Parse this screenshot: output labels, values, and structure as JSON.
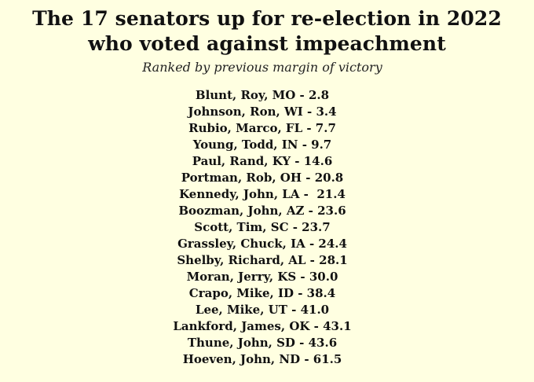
{
  "heading": {
    "title_line1": "The 17 senators up for re-election in 2022",
    "title_line2": "who voted against impeachment",
    "subtitle": "Ranked by previous margin of victory"
  },
  "senators": [
    "Blunt, Roy, MO - 2.8",
    "Johnson, Ron, WI - 3.4",
    "Rubio, Marco, FL - 7.7",
    "Young, Todd, IN - 9.7",
    "Paul, Rand, KY - 14.6",
    "Portman, Rob, OH - 20.8",
    "Kennedy, John, LA -  21.4",
    "Boozman, John, AZ - 23.6",
    "Scott, Tim, SC - 23.7",
    "Grassley, Chuck, IA - 24.4",
    "Shelby, Richard, AL - 28.1",
    "Moran, Jerry, KS - 30.0",
    "Crapo, Mike, ID - 38.4",
    "Lee, Mike, UT - 41.0",
    "Lankford, James, OK - 43.1",
    "Thune, John, SD - 43.6",
    "Hoeven, John, ND - 61.5"
  ]
}
